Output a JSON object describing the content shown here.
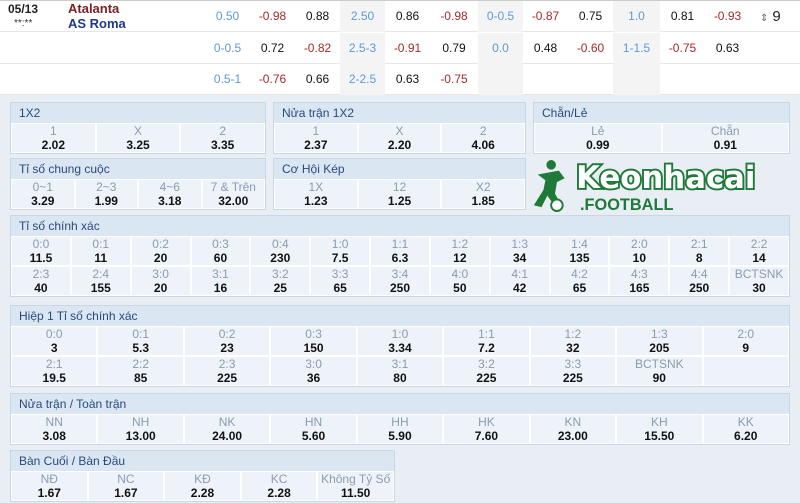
{
  "match": {
    "date": "05/13",
    "time": "**:**",
    "home": "Atalanta",
    "away": "AS Roma",
    "more_count": "9"
  },
  "odds_rows": [
    [
      "0.50",
      "-0.98",
      "0.88",
      "2.50",
      "0.86",
      "-0.98",
      "0-0.5",
      "-0.87",
      "0.75",
      "1.0",
      "0.81",
      "-0.93"
    ],
    [
      "0-0.5",
      "0.72",
      "-0.82",
      "2.5-3",
      "-0.91",
      "0.79",
      "0.0",
      "0.48",
      "-0.60",
      "1-1.5",
      "-0.75",
      "0.63"
    ],
    [
      "0.5-1",
      "-0.76",
      "0.66",
      "2-2.5",
      "0.63",
      "-0.75",
      "",
      "",
      "",
      "",
      "",
      ""
    ]
  ],
  "panels": [
    {
      "id": "1x2",
      "title": "1X2",
      "rows": [
        [
          [
            "1",
            "2.02"
          ],
          [
            "X",
            "3.25"
          ],
          [
            "2",
            "3.35"
          ]
        ]
      ]
    },
    {
      "id": "half-1x2",
      "title": "Nửa trận 1X2",
      "rows": [
        [
          [
            "1",
            "2.37"
          ],
          [
            "X",
            "2.20"
          ],
          [
            "2",
            "4.06"
          ]
        ]
      ]
    },
    {
      "id": "odd-even",
      "title": "Chẵn/Lẻ",
      "rows": [
        [
          [
            "Lẻ",
            "0.99"
          ],
          [
            "Chẵn",
            "0.91"
          ]
        ]
      ]
    },
    {
      "id": "total-goals",
      "title": "Tỉ số chung cuộc",
      "rows": [
        [
          [
            "0~1",
            "3.29"
          ],
          [
            "2~3",
            "1.99"
          ],
          [
            "4~6",
            "3.18"
          ],
          [
            "7 & Trên",
            "32.00"
          ]
        ]
      ]
    },
    {
      "id": "double-chance",
      "title": "Cơ Hội Kép",
      "rows": [
        [
          [
            "1X",
            "1.23"
          ],
          [
            "12",
            "1.25"
          ],
          [
            "X2",
            "1.85"
          ]
        ]
      ]
    },
    {
      "id": "correct-score",
      "title": "Tỉ số chính xác",
      "rows": [
        [
          [
            "0:0",
            "11.5"
          ],
          [
            "0:1",
            "11"
          ],
          [
            "0:2",
            "20"
          ],
          [
            "0:3",
            "60"
          ],
          [
            "0:4",
            "230"
          ],
          [
            "1:0",
            "7.5"
          ],
          [
            "1:1",
            "6.3"
          ],
          [
            "1:2",
            "12"
          ],
          [
            "1:3",
            "34"
          ],
          [
            "1:4",
            "135"
          ],
          [
            "2:0",
            "10"
          ],
          [
            "2:1",
            "8"
          ],
          [
            "2:2",
            "14"
          ]
        ],
        [
          [
            "2:3",
            "40"
          ],
          [
            "2:4",
            "155"
          ],
          [
            "3:0",
            "20"
          ],
          [
            "3:1",
            "16"
          ],
          [
            "3:2",
            "25"
          ],
          [
            "3:3",
            "65"
          ],
          [
            "3:4",
            "250"
          ],
          [
            "4:0",
            "50"
          ],
          [
            "4:1",
            "42"
          ],
          [
            "4:2",
            "65"
          ],
          [
            "4:3",
            "165"
          ],
          [
            "4:4",
            "250"
          ],
          [
            "BCTSNK",
            "30"
          ]
        ]
      ]
    },
    {
      "id": "half-correct-score",
      "title": "Hiệp 1 Tỉ số chính xác",
      "rows": [
        [
          [
            "0:0",
            "3"
          ],
          [
            "0:1",
            "5.3"
          ],
          [
            "0:2",
            "23"
          ],
          [
            "0:3",
            "150"
          ],
          [
            "1:0",
            "3.34"
          ],
          [
            "1:1",
            "7.2"
          ],
          [
            "1:2",
            "32"
          ],
          [
            "1:3",
            "205"
          ],
          [
            "2:0",
            "9"
          ]
        ],
        [
          [
            "2:1",
            "19.5"
          ],
          [
            "2:2",
            "85"
          ],
          [
            "2:3",
            "225"
          ],
          [
            "3:0",
            "36"
          ],
          [
            "3:1",
            "80"
          ],
          [
            "3:2",
            "225"
          ],
          [
            "3:3",
            "225"
          ],
          [
            "BCTSNK",
            "90"
          ],
          [
            "",
            ""
          ]
        ]
      ]
    },
    {
      "id": "half-full",
      "title": "Nửa trận / Toàn trận",
      "rows": [
        [
          [
            "NN",
            "3.08"
          ],
          [
            "NH",
            "13.00"
          ],
          [
            "NK",
            "24.00"
          ],
          [
            "HN",
            "5.60"
          ],
          [
            "HH",
            "5.90"
          ],
          [
            "HK",
            "7.60"
          ],
          [
            "KN",
            "23.00"
          ],
          [
            "KH",
            "15.50"
          ],
          [
            "KK",
            "6.20"
          ]
        ]
      ]
    },
    {
      "id": "last-first-goal",
      "title": "Bàn Cuối / Bàn Đầu",
      "rows": [
        [
          [
            "NĐ",
            "1.67"
          ],
          [
            "NC",
            "1.67"
          ],
          [
            "KĐ",
            "2.28"
          ],
          [
            "KC",
            "2.28"
          ],
          [
            "Không Tỷ Số",
            "11.50"
          ]
        ]
      ]
    }
  ],
  "logo": {
    "text": "Keonhacai",
    "sub": ".FOOTBALL",
    "color": "#1f7a3a"
  }
}
